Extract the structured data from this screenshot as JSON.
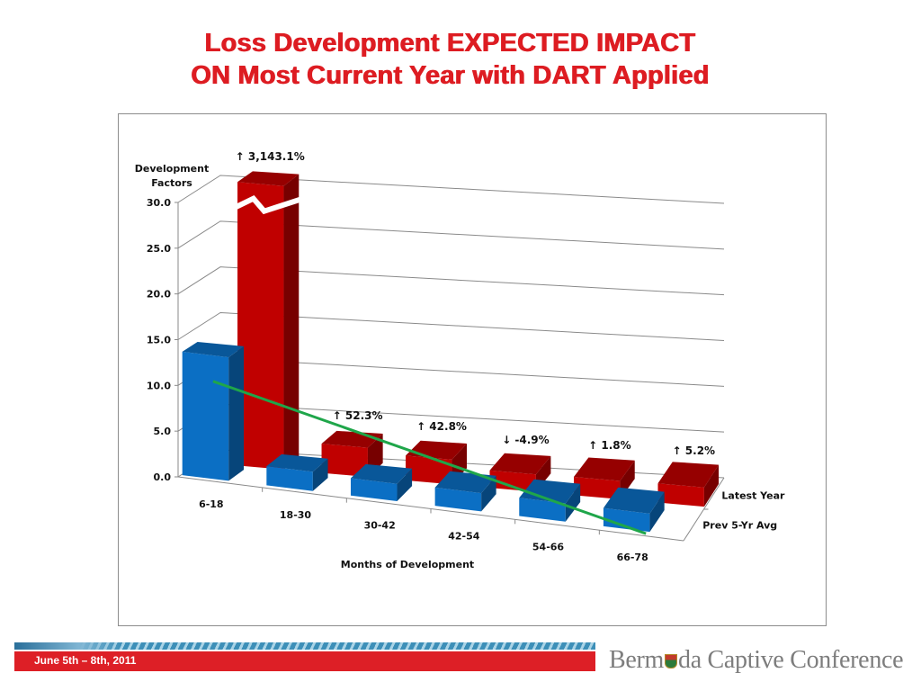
{
  "slide": {
    "title_line1": "Loss Development EXPECTED IMPACT",
    "title_line2": "ON Most Current Year with DART Applied",
    "footer_date": "June 5th – 8th, 2011",
    "brand_part1": "Berm",
    "brand_part2": "da Captive Conference",
    "colors": {
      "title": "#dd1c22",
      "footer_bar": "#dd1f26",
      "brand_text": "#7d7d7d"
    }
  },
  "chart_data": {
    "type": "bar",
    "subtype": "3d-clustered-bar-with-trendline",
    "title": "",
    "ylabel": "Development Factors",
    "xlabel": "Months of Development",
    "ylim": [
      0,
      30
    ],
    "y_ticks": [
      "0.0",
      "5.0",
      "10.0",
      "15.0",
      "20.0",
      "25.0",
      "30.0"
    ],
    "y_tick_values": [
      0,
      5,
      10,
      15,
      20,
      25,
      30
    ],
    "grid": true,
    "categories": [
      "6-18",
      "18-30",
      "30-42",
      "42-54",
      "54-66",
      "66-78"
    ],
    "series": [
      {
        "name": "Latest Year",
        "color": "#c00000",
        "values": [
          31,
          3.2,
          2.7,
          1.9,
          2.0,
          2.1
        ],
        "axis_break_on": [
          0
        ]
      },
      {
        "name": "Prev 5-Yr Avg",
        "color": "#0b6fc4",
        "values": [
          13.5,
          2.1,
          1.9,
          2.0,
          2.0,
          2.0
        ]
      }
    ],
    "depth_labels": [
      "Latest Year",
      "Prev 5-Yr Avg"
    ],
    "annotations": [
      "↑ 3,143.1%",
      "↑ 52.3%",
      "↑ 42.8%",
      "↓ -4.9%",
      "↑ 1.8%",
      "↑ 5.2%"
    ],
    "trendline": {
      "color": "#1fa64a",
      "from": 10.0,
      "to": 0
    }
  }
}
